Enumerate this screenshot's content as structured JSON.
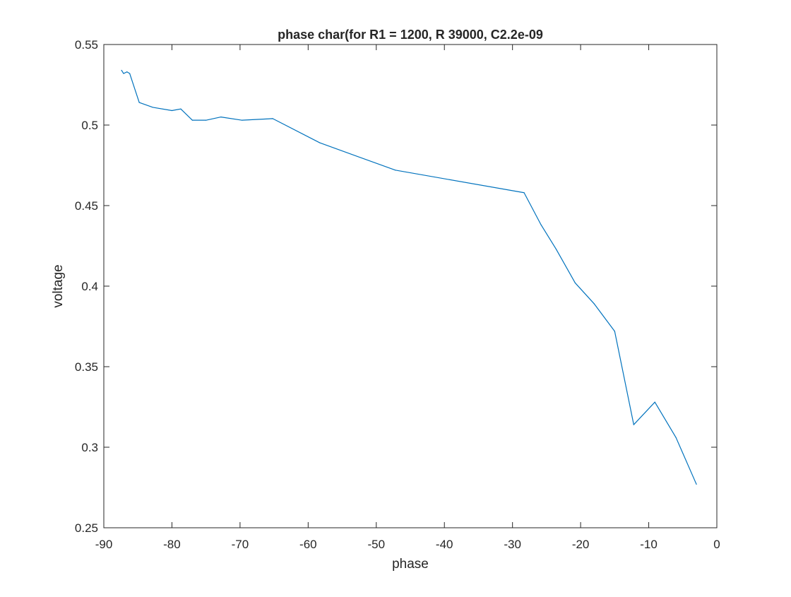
{
  "chart_data": {
    "type": "line",
    "title": "phase char(for R1 = 1200, R 39000, C2.2e-09",
    "xlabel": "phase",
    "ylabel": "voltage",
    "xlim": [
      -90,
      0
    ],
    "ylim": [
      0.25,
      0.55
    ],
    "xticks": [
      -90,
      -80,
      -70,
      -60,
      -50,
      -40,
      -30,
      -20,
      -10,
      0
    ],
    "xtick_labels": [
      "-90",
      "-80",
      "-70",
      "-60",
      "-50",
      "-40",
      "-30",
      "-20",
      "-10",
      "0"
    ],
    "yticks": [
      0.25,
      0.3,
      0.35,
      0.4,
      0.45,
      0.5,
      0.55
    ],
    "ytick_labels": [
      "0.25",
      "0.3",
      "0.35",
      "0.4",
      "0.45",
      "0.5",
      "0.55"
    ],
    "grid": false,
    "line_color": "#0072BD",
    "series": [
      {
        "x": [
          -87.4,
          -87.1,
          -86.6,
          -86.2,
          -84.8,
          -82.8,
          -80.0,
          -78.7,
          -77.0,
          -75.0,
          -72.8,
          -69.7,
          -65.2,
          -58.3,
          -47.2,
          -28.3,
          -25.8,
          -23.6,
          -20.8,
          -18.0,
          -15.0,
          -12.2,
          -9.1,
          -6.0,
          -3.0
        ],
        "y": [
          0.534,
          0.532,
          0.533,
          0.532,
          0.514,
          0.511,
          0.509,
          0.51,
          0.503,
          0.503,
          0.505,
          0.503,
          0.504,
          0.489,
          0.472,
          0.458,
          0.438,
          0.423,
          0.402,
          0.389,
          0.372,
          0.314,
          0.328,
          0.306,
          0.277
        ]
      }
    ]
  }
}
